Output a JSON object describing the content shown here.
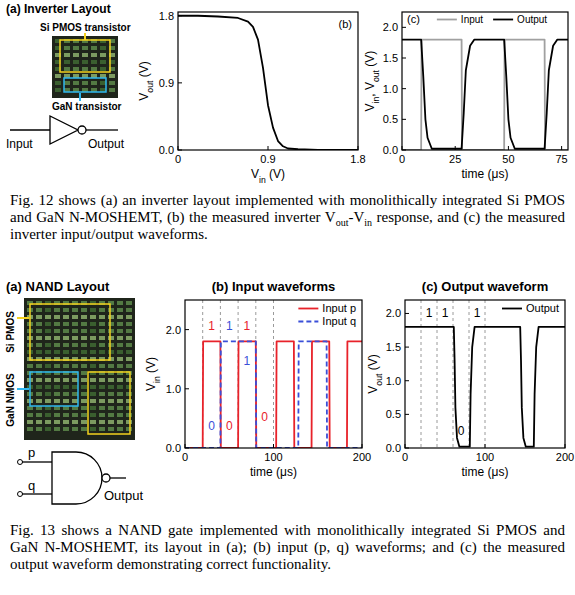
{
  "layouts": [
    {
      "title": "(a) Inverter Layout",
      "labels": [
        "Si PMOS transistor",
        "GaN transistor"
      ],
      "gate": {
        "type": "inverter",
        "inputs": [
          "Input"
        ],
        "output": "Output"
      }
    },
    {
      "title": "(a) NAND Layout",
      "labels": [
        "GaN NMOS",
        "Si PMOS"
      ],
      "gate": {
        "type": "nand",
        "inputs": [
          "p",
          "q"
        ],
        "output": "Output"
      }
    }
  ],
  "chart_data": [
    {
      "type": "line",
      "title": "(b)",
      "xlabel": [
        "V",
        "in",
        " (V)"
      ],
      "ylabel": [
        "V",
        "out",
        " (V)"
      ],
      "xlim": [
        0,
        1.8
      ],
      "ylim": [
        0,
        1.85
      ],
      "xticks": [
        0,
        0.9,
        1.8
      ],
      "yticks": [
        {
          "value": 0,
          "label": "0.0"
        },
        0.9,
        1.8
      ],
      "series": [
        {
          "color": "#000000",
          "x": [
            0,
            0.2,
            0.4,
            0.6,
            0.7,
            0.75,
            0.8,
            0.85,
            0.9,
            0.95,
            1.0,
            1.05,
            1.1,
            1.2,
            1.4,
            1.6,
            1.8
          ],
          "values": [
            1.8,
            1.8,
            1.79,
            1.77,
            1.72,
            1.65,
            1.48,
            1.1,
            0.6,
            0.3,
            0.12,
            0.05,
            0.02,
            0.01,
            0,
            0,
            0
          ]
        }
      ]
    },
    {
      "type": "line",
      "title": "(c)",
      "xlabel": [
        "time (μs)"
      ],
      "ylabel": [
        "V",
        "in",
        ", V",
        "out",
        " (V)"
      ],
      "xlim": [
        0,
        78
      ],
      "ylim": [
        0,
        2.25
      ],
      "xticks": [
        0,
        25,
        50,
        75
      ],
      "yticks": [
        {
          "value": 0,
          "label": "0.0"
        },
        0.5,
        {
          "value": 1,
          "label": "1.0"
        },
        1.5,
        {
          "value": 2,
          "label": "2.0"
        }
      ],
      "legend": "upper center",
      "series": [
        {
          "name": "Input",
          "color": "#a0a0a0",
          "x": [
            0,
            9,
            9.2,
            28,
            28.2,
            48,
            48.2,
            67,
            67.2,
            78
          ],
          "values": [
            0,
            0,
            1.8,
            1.8,
            0,
            0,
            1.8,
            1.8,
            0,
            0
          ]
        },
        {
          "name": "Output",
          "color": "#000000",
          "x": [
            0,
            9,
            10,
            11,
            12,
            14,
            28,
            29,
            30,
            32,
            34,
            48,
            49,
            50,
            51,
            53,
            67,
            68,
            69,
            71,
            73,
            78
          ],
          "values": [
            1.8,
            1.8,
            1.2,
            0.5,
            0.2,
            0.02,
            0.02,
            0.6,
            1.3,
            1.7,
            1.8,
            1.8,
            1.2,
            0.5,
            0.2,
            0.02,
            0.02,
            0.6,
            1.3,
            1.7,
            1.8,
            1.8
          ]
        }
      ]
    },
    {
      "type": "line",
      "title": "(b) Input waveforms",
      "xlabel": [
        "time (μs)"
      ],
      "ylabel": [
        "V",
        "in",
        " (V)"
      ],
      "xlim": [
        0,
        200
      ],
      "ylim": [
        0,
        2.5
      ],
      "xticks": [
        0,
        100,
        200
      ],
      "yticks": [
        {
          "value": 0,
          "label": "0.0"
        },
        {
          "value": 1,
          "label": "1.0"
        },
        {
          "value": 2,
          "label": "2.0"
        }
      ],
      "legend": "upper right",
      "reference_lines": [
        20,
        40,
        60,
        80,
        100
      ],
      "series": [
        {
          "name": "Input p",
          "color": "#e8222a",
          "line_style": "solid",
          "x": [
            0,
            20,
            20.5,
            40,
            40.5,
            60,
            60.5,
            80,
            80.5,
            103,
            103.5,
            123,
            123.5,
            143,
            143.5,
            163,
            163.5,
            183,
            183.5,
            200
          ],
          "values": [
            0,
            0,
            1.8,
            1.8,
            0,
            0,
            1.8,
            1.8,
            0,
            0,
            1.8,
            1.8,
            0,
            0,
            1.8,
            1.8,
            0,
            0,
            1.8,
            1.8
          ]
        },
        {
          "name": "Input q",
          "color": "#3a4fd8",
          "line_style": "dashed",
          "x": [
            0,
            40,
            40.5,
            80,
            80.5,
            128,
            128.5,
            160,
            160.5,
            200
          ],
          "values": [
            0,
            0,
            1.8,
            1.8,
            0,
            0,
            1.8,
            1.8,
            0,
            0
          ]
        }
      ],
      "annotations": [
        {
          "text": "1",
          "x": 30,
          "y": 2.0,
          "color": "#e8222a"
        },
        {
          "text": "1",
          "x": 50,
          "y": 2.0,
          "color": "#3a4fd8"
        },
        {
          "text": "1",
          "x": 70,
          "y": 2.0,
          "color": "#e8222a"
        },
        {
          "text": "1",
          "x": 70,
          "y": 1.4,
          "color": "#3a4fd8"
        },
        {
          "text": "0",
          "x": 30,
          "y": 0.3,
          "color": "#3a4fd8"
        },
        {
          "text": "0",
          "x": 50,
          "y": 0.3,
          "color": "#e8222a"
        },
        {
          "text": "0",
          "x": 90,
          "y": 0.45,
          "color": "#e8222a"
        }
      ]
    },
    {
      "type": "line",
      "title": "(c) Output waveform",
      "xlabel": [
        "time (μs)"
      ],
      "ylabel": [
        "V",
        "out",
        " (V)"
      ],
      "xlim": [
        0,
        200
      ],
      "ylim": [
        0,
        2.2
      ],
      "xticks": [
        0,
        100,
        200
      ],
      "yticks": [
        {
          "value": 0,
          "label": "0.0"
        },
        0.5,
        {
          "value": 1,
          "label": "1.0"
        },
        1.5,
        {
          "value": 2,
          "label": "2.0"
        }
      ],
      "legend": "upper right",
      "reference_lines": [
        20,
        40,
        60,
        80,
        100
      ],
      "series": [
        {
          "name": "Output",
          "color": "#000000",
          "x": [
            0,
            61,
            62,
            63,
            65,
            68,
            81,
            82,
            84,
            87,
            144,
            145,
            146,
            148,
            151,
            161,
            162,
            164,
            167,
            200
          ],
          "values": [
            1.8,
            1.8,
            1.3,
            0.6,
            0.15,
            0.02,
            0.02,
            0.8,
            1.5,
            1.8,
            1.8,
            1.3,
            0.6,
            0.15,
            0.02,
            0.02,
            0.8,
            1.5,
            1.8,
            1.8
          ]
        }
      ],
      "annotations": [
        {
          "text": "1",
          "x": 30,
          "y": 1.95,
          "color": "#000000"
        },
        {
          "text": "1",
          "x": 50,
          "y": 1.95,
          "color": "#000000"
        },
        {
          "text": "0",
          "x": 70,
          "y": 0.2,
          "color": "#000000"
        },
        {
          "text": "1",
          "x": 90,
          "y": 1.95,
          "color": "#000000"
        }
      ]
    }
  ],
  "captions": [
    [
      "Fig. 12 shows (a) an inverter layout implemented with monolithically integrated Si PMOS and GaN N-MOSHEMT, (b) the measured inverter V",
      "out",
      "-V",
      "in",
      " response, and (c) the measured inverter input/output waveforms."
    ],
    [
      "Fig. 13 shows a NAND gate implemented with monolithically integrated Si PMOS and GaN N-MOSHEMT, its layout in (a); (b) input (p, q) waveforms; and (c) the measured output waveform demonstrating correct functionality."
    ]
  ]
}
